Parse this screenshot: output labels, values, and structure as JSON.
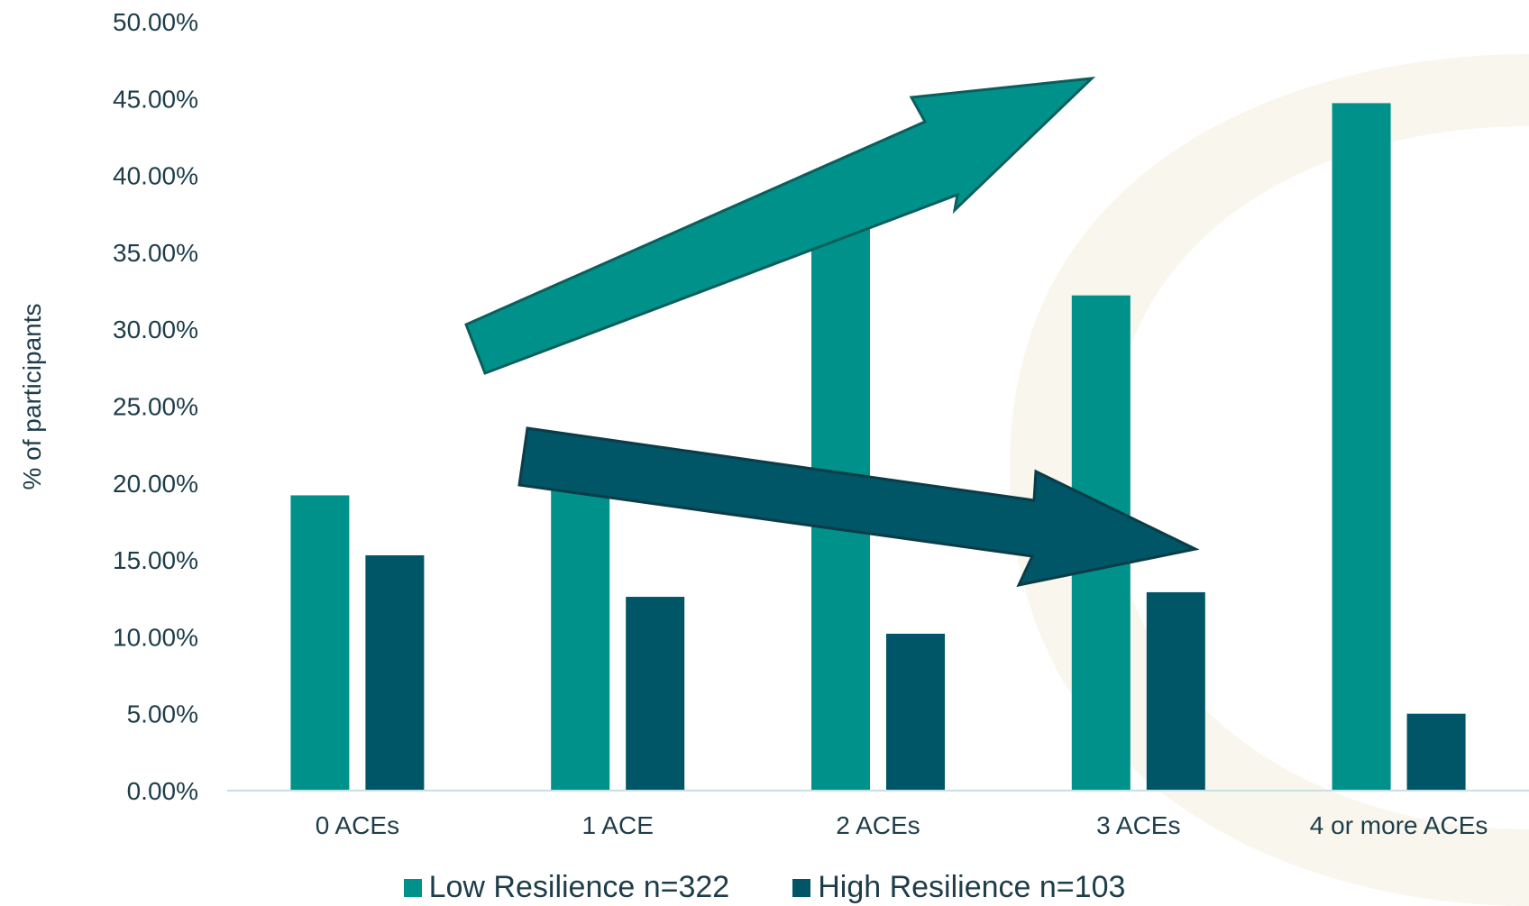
{
  "chart_data": {
    "type": "bar",
    "categories": [
      "0 ACEs",
      "1 ACE",
      "2 ACEs",
      "3 ACEs",
      "4 or more ACEs"
    ],
    "series": [
      {
        "name": "Low Resilience n=322",
        "color": "#00918a",
        "values": [
          19.2,
          19.5,
          38.0,
          32.2,
          44.7
        ]
      },
      {
        "name": "High Resilience n=103",
        "color": "#005566",
        "values": [
          15.3,
          12.6,
          10.2,
          12.9,
          5.0
        ]
      }
    ],
    "ylabel": "%  of participants",
    "xlabel": "",
    "ylim": [
      0,
      50
    ],
    "yticks": [
      "0.00%",
      "5.00%",
      "10.00%",
      "15.00%",
      "20.00%",
      "25.00%",
      "30.00%",
      "35.00%",
      "40.00%",
      "45.00%",
      "50.00%"
    ],
    "legend_position": "bottom",
    "annotations": [
      {
        "type": "arrow",
        "direction": "up-right",
        "color": "#00918a",
        "meaning": "increasing trend for Low Resilience"
      },
      {
        "type": "arrow",
        "direction": "down-right",
        "color": "#005566",
        "meaning": "decreasing trend for High Resilience"
      }
    ]
  }
}
